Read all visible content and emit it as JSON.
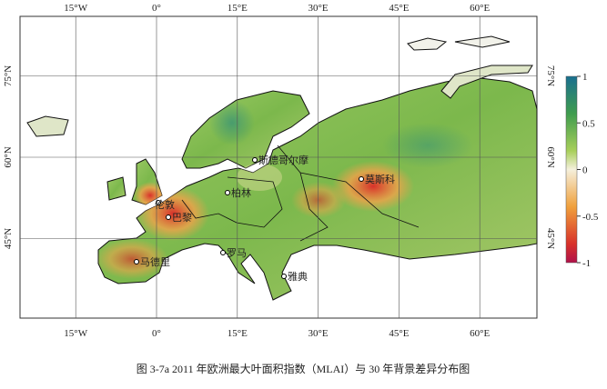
{
  "map": {
    "lon_ticks": [
      {
        "value": -15,
        "label": "15°W"
      },
      {
        "value": 0,
        "label": "0°"
      },
      {
        "value": 15,
        "label": "15°E"
      },
      {
        "value": 30,
        "label": "30°E"
      },
      {
        "value": 45,
        "label": "45°E"
      },
      {
        "value": 60,
        "label": "60°E"
      }
    ],
    "lat_ticks": [
      {
        "value": 75,
        "label": "75°N"
      },
      {
        "value": 60,
        "label": "60°N"
      },
      {
        "value": 45,
        "label": "45°N"
      }
    ],
    "cities": [
      "伦敦",
      "巴黎",
      "柏林",
      "斯德哥尔摩",
      "莫斯科",
      "马德里",
      "罗马",
      "雅典"
    ],
    "colorbar": {
      "lim": [
        -1,
        1
      ],
      "ticks": [
        1,
        0.5,
        0,
        -0.5,
        -1
      ]
    },
    "caption": "图 3-7a 2011 年欧洲最大叶面积指数（MLAI）与 30 年背景差异分布图"
  }
}
